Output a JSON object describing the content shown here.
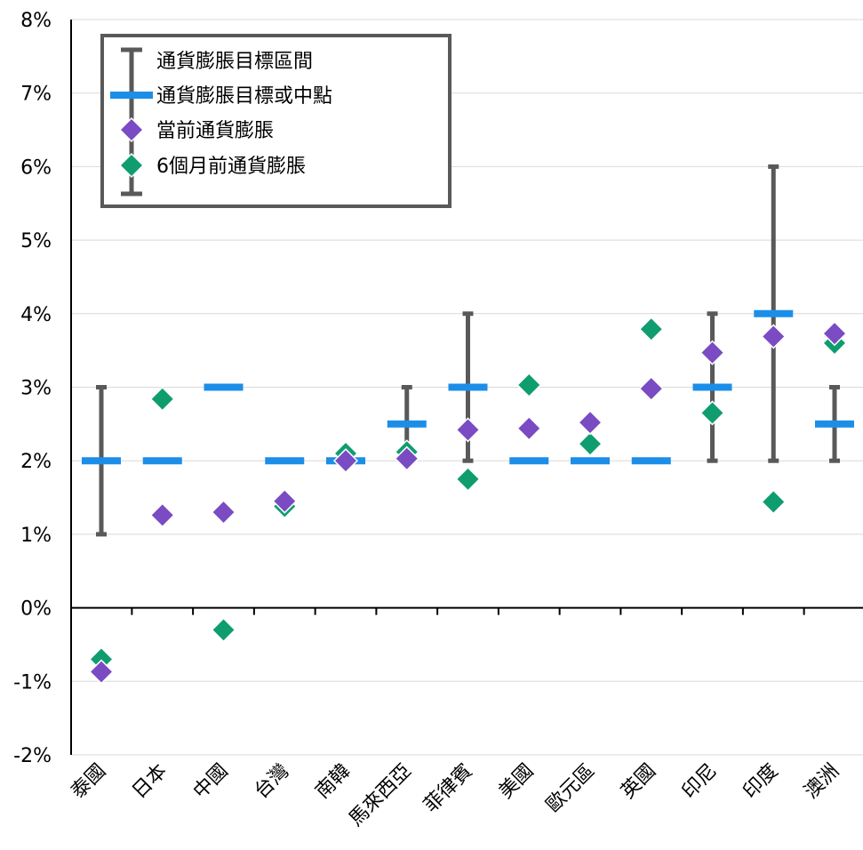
{
  "chart_data": {
    "type": "scatter",
    "categories": [
      "泰國",
      "日本",
      "中國",
      "台灣",
      "南韓",
      "馬來西亞",
      "菲律賓",
      "美國",
      "歐元區",
      "英國",
      "印尼",
      "印度",
      "澳洲"
    ],
    "yticks": [
      "-2%",
      "-1%",
      "0%",
      "1%",
      "2%",
      "3%",
      "4%",
      "5%",
      "6%",
      "7%",
      "8%"
    ],
    "ylim": [
      -2,
      8
    ],
    "grid": true,
    "legend_position": "top-left",
    "series": [
      {
        "name": "通貨膨脹目標區間",
        "kind": "range",
        "low": [
          1,
          null,
          null,
          null,
          null,
          2,
          2,
          null,
          null,
          null,
          2,
          2,
          2
        ],
        "high": [
          3,
          null,
          null,
          null,
          null,
          3,
          4,
          null,
          null,
          null,
          4,
          6,
          3
        ]
      },
      {
        "name": "通貨膨脹目標或中點",
        "kind": "dash",
        "values": [
          2,
          2,
          3,
          2,
          2,
          2.5,
          3,
          2,
          2,
          2,
          3,
          4,
          2.5
        ]
      },
      {
        "name": "當前通貨膨脹",
        "kind": "diamond",
        "values": [
          -0.87,
          1.26,
          1.3,
          1.45,
          2.0,
          2.03,
          2.42,
          2.44,
          2.52,
          2.98,
          3.47,
          3.69,
          3.73
        ]
      },
      {
        "name": "6個月前通貨膨脹",
        "kind": "diamond",
        "values": [
          -0.7,
          2.84,
          -0.3,
          1.38,
          2.1,
          2.12,
          1.75,
          3.03,
          2.23,
          3.79,
          2.65,
          1.44,
          3.6
        ]
      }
    ],
    "colors": {
      "range": "#595959",
      "dash": "#1c8ee8",
      "current": "#7a4bc2",
      "prior": "#0f9d70",
      "grid": "#d9d9d9",
      "axis": "#000000",
      "legend_border": "#595959"
    }
  }
}
